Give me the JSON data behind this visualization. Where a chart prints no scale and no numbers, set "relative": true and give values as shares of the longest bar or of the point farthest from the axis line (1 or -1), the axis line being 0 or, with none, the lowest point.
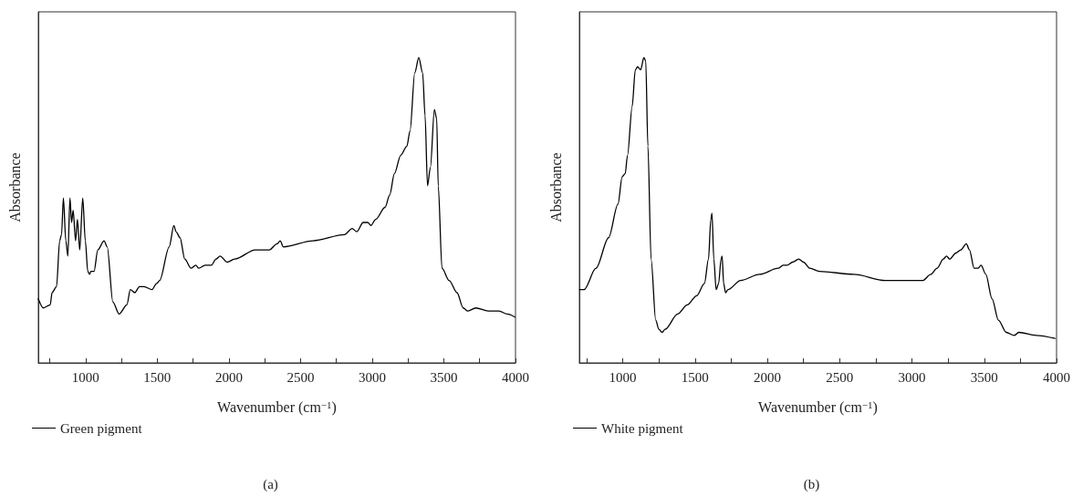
{
  "chart_data": [
    {
      "type": "line",
      "xlabel": "Wavenumber (cm$^{−1}$)",
      "ylabel": "Absorbance",
      "relative": true,
      "xlim": [
        670,
        4000
      ],
      "xticks": [
        {
          "value": 750,
          "label": null
        },
        1000,
        {
          "value": 1250,
          "label": null
        },
        1500,
        {
          "value": 1750,
          "label": null
        },
        2000,
        {
          "value": 2250,
          "label": null
        },
        2500,
        {
          "value": 2750,
          "label": null
        },
        3000,
        {
          "value": 3250,
          "label": null
        },
        3500,
        {
          "value": 3750,
          "label": null
        },
        4000
      ],
      "grid": false,
      "legend": "bottom left",
      "marker": "none",
      "line_style": "solid",
      "annotations": [
        "(a)"
      ],
      "series": [
        {
          "name": "Green pigment",
          "color": "#000000",
          "x": [
            670,
            705,
            753,
            766,
            797,
            819,
            832,
            845,
            862,
            876,
            891,
            902,
            913,
            930,
            943,
            959,
            980,
            998,
            1015,
            1028,
            1037,
            1059,
            1085,
            1129,
            1151,
            1190,
            1234,
            1288,
            1312,
            1343,
            1376,
            1408,
            1463,
            1496,
            1517,
            1583,
            1616,
            1631,
            1659,
            1692,
            1736,
            1769,
            1790,
            1834,
            1878,
            1910,
            1939,
            1987,
            2041,
            2183,
            2282,
            2336,
            2358,
            2380,
            2587,
            2806,
            2860,
            2893,
            2937,
            2969,
            2991,
            3024,
            3090,
            3122,
            3155,
            3199,
            3242,
            3264,
            3297,
            3325,
            3352,
            3369,
            3386,
            3406,
            3434,
            3450,
            3461,
            3487,
            3537,
            3592,
            3635,
            3668,
            3723,
            3810,
            3886,
            3941,
            3996
          ],
          "values": [
            0.21,
            0.18,
            0.19,
            0.23,
            0.25,
            0.4,
            0.42,
            0.54,
            0.4,
            0.35,
            0.54,
            0.46,
            0.5,
            0.4,
            0.47,
            0.37,
            0.54,
            0.4,
            0.3,
            0.29,
            0.3,
            0.3,
            0.37,
            0.4,
            0.38,
            0.2,
            0.16,
            0.19,
            0.24,
            0.23,
            0.25,
            0.25,
            0.24,
            0.26,
            0.27,
            0.38,
            0.45,
            0.43,
            0.41,
            0.34,
            0.31,
            0.32,
            0.31,
            0.32,
            0.32,
            0.34,
            0.35,
            0.33,
            0.34,
            0.37,
            0.37,
            0.39,
            0.4,
            0.38,
            0.4,
            0.42,
            0.44,
            0.43,
            0.46,
            0.46,
            0.45,
            0.47,
            0.51,
            0.55,
            0.62,
            0.68,
            0.71,
            0.76,
            0.95,
            1,
            0.95,
            0.81,
            0.58,
            0.64,
            0.83,
            0.8,
            0.58,
            0.31,
            0.27,
            0.23,
            0.18,
            0.17,
            0.18,
            0.17,
            0.17,
            0.16,
            0.15
          ]
        }
      ]
    },
    {
      "type": "line",
      "xlabel": "Wavenumber (cm$^{−1}$)",
      "ylabel": "Absorbance",
      "relative": true,
      "xlim": [
        700,
        4000
      ],
      "xticks": [
        {
          "value": 750,
          "label": null
        },
        1000,
        {
          "value": 1250,
          "label": null
        },
        1500,
        {
          "value": 1750,
          "label": null
        },
        2000,
        {
          "value": 2250,
          "label": null
        },
        2500,
        {
          "value": 2750,
          "label": null
        },
        3000,
        {
          "value": 3250,
          "label": null
        },
        3500,
        {
          "value": 3750,
          "label": null
        },
        4000
      ],
      "grid": false,
      "legend": "bottom left",
      "marker": "none",
      "line_style": "solid",
      "annotations": [
        "(b)"
      ],
      "series": [
        {
          "name": "White pigment",
          "color": "#000000",
          "x": [
            702,
            733,
            815,
            902,
            967,
            996,
            1017,
            1033,
            1065,
            1087,
            1102,
            1124,
            1146,
            1159,
            1174,
            1196,
            1228,
            1250,
            1272,
            1293,
            1380,
            1446,
            1511,
            1565,
            1593,
            1609,
            1617,
            1630,
            1646,
            1663,
            1680,
            1687,
            1698,
            1711,
            1728,
            1815,
            1946,
            2076,
            2109,
            2137,
            2174,
            2217,
            2250,
            2294,
            2359,
            2598,
            2815,
            2989,
            3076,
            3130,
            3174,
            3217,
            3239,
            3261,
            3304,
            3337,
            3376,
            3398,
            3430,
            3457,
            3478,
            3511,
            3554,
            3598,
            3652,
            3707,
            3739,
            3859,
            3989
          ],
          "values": [
            0.24,
            0.24,
            0.31,
            0.41,
            0.52,
            0.61,
            0.62,
            0.68,
            0.84,
            0.96,
            0.97,
            0.96,
            1,
            0.99,
            0.71,
            0.34,
            0.14,
            0.11,
            0.1,
            0.11,
            0.16,
            0.19,
            0.22,
            0.26,
            0.34,
            0.47,
            0.49,
            0.34,
            0.24,
            0.26,
            0.34,
            0.35,
            0.26,
            0.23,
            0.24,
            0.27,
            0.29,
            0.31,
            0.32,
            0.32,
            0.33,
            0.34,
            0.33,
            0.31,
            0.3,
            0.29,
            0.27,
            0.27,
            0.27,
            0.29,
            0.31,
            0.34,
            0.35,
            0.34,
            0.36,
            0.37,
            0.39,
            0.37,
            0.31,
            0.31,
            0.32,
            0.29,
            0.21,
            0.14,
            0.1,
            0.09,
            0.1,
            0.09,
            0.08
          ]
        }
      ]
    }
  ]
}
